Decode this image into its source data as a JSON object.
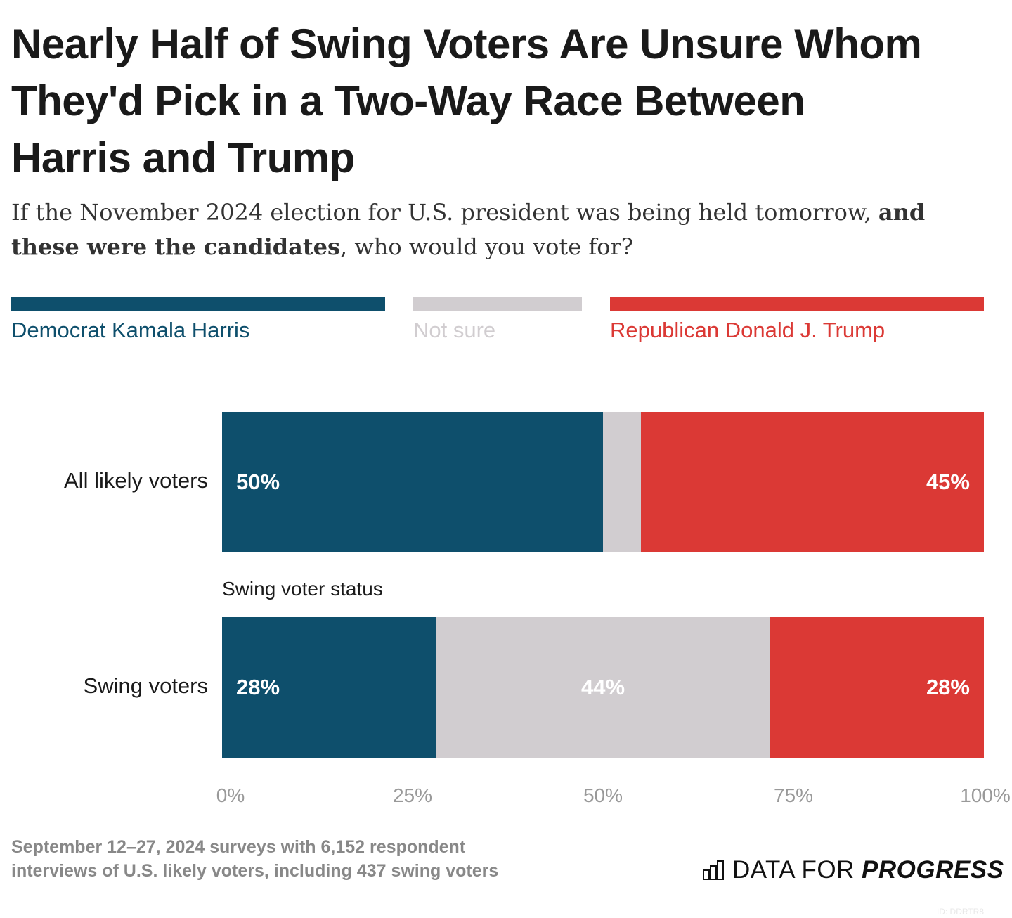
{
  "title": "Nearly Half of Swing Voters Are Unsure Whom They'd Pick in a Two-Way Race Between Harris and Trump",
  "subtitle": {
    "p1": "If the November 2024 election for U.S. president was being held tomorrow, ",
    "b1": "and these were the candidates",
    "p2": ", who would you vote for?"
  },
  "chart_data": {
    "type": "bar",
    "orientation": "horizontal",
    "stacked": true,
    "categories": [
      "All likely voters",
      "Swing voters"
    ],
    "group_label": "Swing voter status",
    "series": [
      {
        "name": "Democrat Kamala Harris",
        "color": "#0e4f6c",
        "values": [
          50,
          28
        ],
        "labels": [
          "50%",
          "28%"
        ]
      },
      {
        "name": "Not sure",
        "color": "#d1cdd0",
        "values": [
          5,
          44
        ],
        "labels": [
          "",
          "44%"
        ]
      },
      {
        "name": "Republican Donald J. Trump",
        "color": "#db3935",
        "values": [
          45,
          28
        ],
        "labels": [
          "45%",
          "28%"
        ]
      }
    ],
    "xlim": [
      0,
      100
    ],
    "xticks": [
      "0%",
      "25%",
      "50%",
      "75%",
      "100%"
    ],
    "legend": "top"
  },
  "source": "September 12–27, 2024 surveys with 6,152 respondent interviews of U.S. likely voters, including 437 swing voters",
  "logo": {
    "a": "DATA FOR ",
    "b": "PROGRESS"
  },
  "id": "ID: DDRTR8"
}
